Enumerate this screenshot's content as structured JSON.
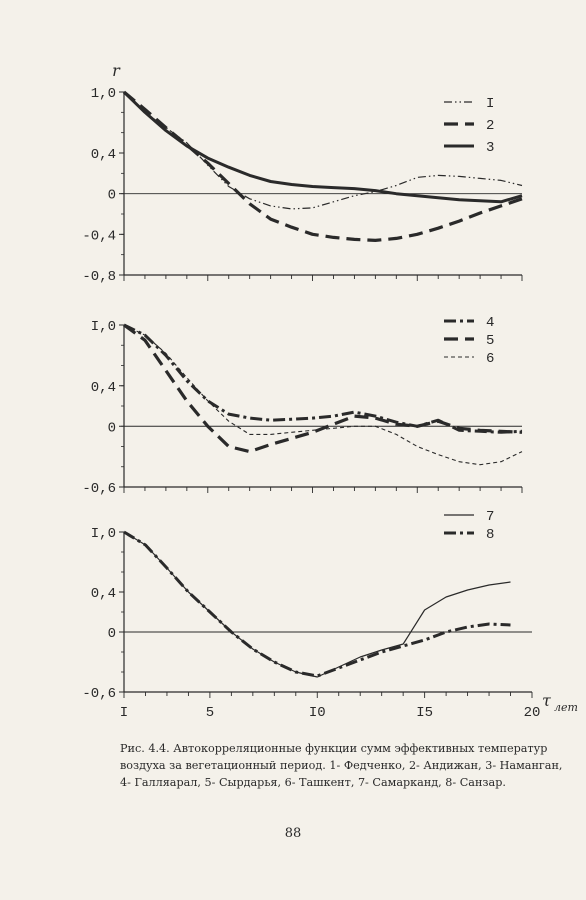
{
  "chart_data": [
    {
      "type": "line",
      "ylabel": "r",
      "ylim": [
        -0.8,
        1.0
      ],
      "xlim": [
        1,
        20
      ],
      "yticks": [
        "1,0",
        "0,4",
        "0",
        "-0,4",
        "-0,8"
      ],
      "ytick_values": [
        1.0,
        0.4,
        0,
        -0.4,
        -0.8
      ],
      "series": [
        {
          "name": "I",
          "style": "dash-dot-dot-thin",
          "x": [
            1,
            2,
            3,
            4,
            5,
            6,
            7,
            8,
            9,
            10,
            11,
            12,
            13,
            14,
            15,
            16,
            17,
            18,
            19,
            20
          ],
          "y": [
            1.0,
            0.8,
            0.65,
            0.5,
            0.28,
            0.07,
            -0.05,
            -0.12,
            -0.15,
            -0.14,
            -0.08,
            -0.02,
            0.02,
            0.08,
            0.16,
            0.18,
            0.17,
            0.15,
            0.13,
            0.08
          ]
        },
        {
          "name": "2",
          "style": "long-dash-bold",
          "x": [
            1,
            2,
            3,
            4,
            5,
            6,
            7,
            8,
            9,
            10,
            11,
            12,
            13,
            14,
            15,
            16,
            17,
            18,
            19,
            20
          ],
          "y": [
            1.0,
            0.83,
            0.65,
            0.48,
            0.3,
            0.1,
            -0.1,
            -0.25,
            -0.33,
            -0.4,
            -0.43,
            -0.45,
            -0.46,
            -0.44,
            -0.4,
            -0.34,
            -0.27,
            -0.19,
            -0.12,
            -0.05
          ]
        },
        {
          "name": "3",
          "style": "solid-bold",
          "x": [
            1,
            2,
            3,
            4,
            5,
            6,
            7,
            8,
            9,
            10,
            11,
            12,
            13,
            14,
            15,
            16,
            17,
            18,
            19,
            20
          ],
          "y": [
            1.0,
            0.8,
            0.62,
            0.47,
            0.35,
            0.26,
            0.18,
            0.12,
            0.09,
            0.07,
            0.06,
            0.05,
            0.03,
            0.0,
            -0.02,
            -0.04,
            -0.06,
            -0.07,
            -0.08,
            -0.02
          ]
        }
      ]
    },
    {
      "type": "line",
      "ylim": [
        -0.6,
        1.0
      ],
      "xlim": [
        1,
        20
      ],
      "yticks": [
        "I,0",
        "0,4",
        "0",
        "-0,6"
      ],
      "ytick_values": [
        1.0,
        0.4,
        0,
        -0.6
      ],
      "series": [
        {
          "name": "4",
          "style": "dash-dot-bold",
          "x": [
            1,
            2,
            3,
            4,
            5,
            6,
            7,
            8,
            9,
            10,
            11,
            12,
            13,
            14,
            15,
            16,
            17,
            18,
            19,
            20
          ],
          "y": [
            1.0,
            0.9,
            0.7,
            0.45,
            0.25,
            0.12,
            0.08,
            0.06,
            0.07,
            0.08,
            0.1,
            0.14,
            0.1,
            0.04,
            0.0,
            0.06,
            -0.04,
            -0.05,
            -0.06,
            -0.05
          ]
        },
        {
          "name": "5",
          "style": "long-dash-bold",
          "x": [
            1,
            2,
            3,
            4,
            5,
            6,
            7,
            8,
            9,
            10,
            11,
            12,
            13,
            14,
            15,
            16,
            17,
            18,
            19,
            20
          ],
          "y": [
            1.0,
            0.85,
            0.55,
            0.25,
            0.0,
            -0.2,
            -0.25,
            -0.18,
            -0.12,
            -0.06,
            0.02,
            0.1,
            0.08,
            0.02,
            0.0,
            0.05,
            -0.02,
            -0.04,
            -0.05,
            -0.06
          ]
        },
        {
          "name": "6",
          "style": "short-dash-thin",
          "x": [
            1,
            2,
            3,
            4,
            5,
            6,
            7,
            8,
            9,
            10,
            11,
            12,
            13,
            14,
            15,
            16,
            17,
            18,
            19,
            20
          ],
          "y": [
            1.0,
            0.9,
            0.72,
            0.48,
            0.25,
            0.05,
            -0.08,
            -0.08,
            -0.06,
            -0.04,
            -0.02,
            0.0,
            0.0,
            -0.08,
            -0.2,
            -0.28,
            -0.35,
            -0.38,
            -0.35,
            -0.25
          ]
        }
      ]
    },
    {
      "type": "line",
      "xlabel": "τ лет",
      "ylim": [
        -0.6,
        1.0
      ],
      "xlim": [
        1,
        20
      ],
      "yticks": [
        "I,0",
        "0,4",
        "0",
        "-0,6"
      ],
      "ytick_values": [
        1.0,
        0.4,
        0,
        -0.6
      ],
      "xticks": [
        "I",
        "5",
        "I0",
        "I5",
        "20"
      ],
      "xtick_values": [
        1,
        5,
        10,
        15,
        20
      ],
      "series": [
        {
          "name": "7",
          "style": "solid-thin",
          "x": [
            1,
            2,
            3,
            4,
            5,
            6,
            7,
            8,
            9,
            10,
            11,
            12,
            13,
            14,
            15,
            16,
            17,
            18,
            19
          ],
          "y": [
            1.0,
            0.87,
            0.64,
            0.4,
            0.2,
            0.0,
            -0.17,
            -0.3,
            -0.4,
            -0.45,
            -0.35,
            -0.25,
            -0.18,
            -0.12,
            0.22,
            0.35,
            0.42,
            0.47,
            0.5
          ]
        },
        {
          "name": "8",
          "style": "dash-dot-bold",
          "x": [
            1,
            2,
            3,
            4,
            5,
            6,
            7,
            8,
            9,
            10,
            11,
            12,
            13,
            14,
            15,
            16,
            17,
            18,
            19
          ],
          "y": [
            1.0,
            0.87,
            0.64,
            0.4,
            0.2,
            0.0,
            -0.17,
            -0.3,
            -0.4,
            -0.44,
            -0.36,
            -0.28,
            -0.2,
            -0.14,
            -0.08,
            0.0,
            0.05,
            0.08,
            0.07
          ]
        }
      ]
    }
  ],
  "caption": "Рис. 4.4. Автокорреляционные функции сумм эффективных температур воздуха за вегетационный период. 1- Федченко, 2- Андижан, 3- Наманган, 4- Галляарал, 5- Сырдарья, 6- Ташкент, 7- Самарканд, 8- Санзар.",
  "page_number": "88",
  "colors": {
    "ink": "#2a2a2a",
    "paper": "#f4f1ea"
  }
}
